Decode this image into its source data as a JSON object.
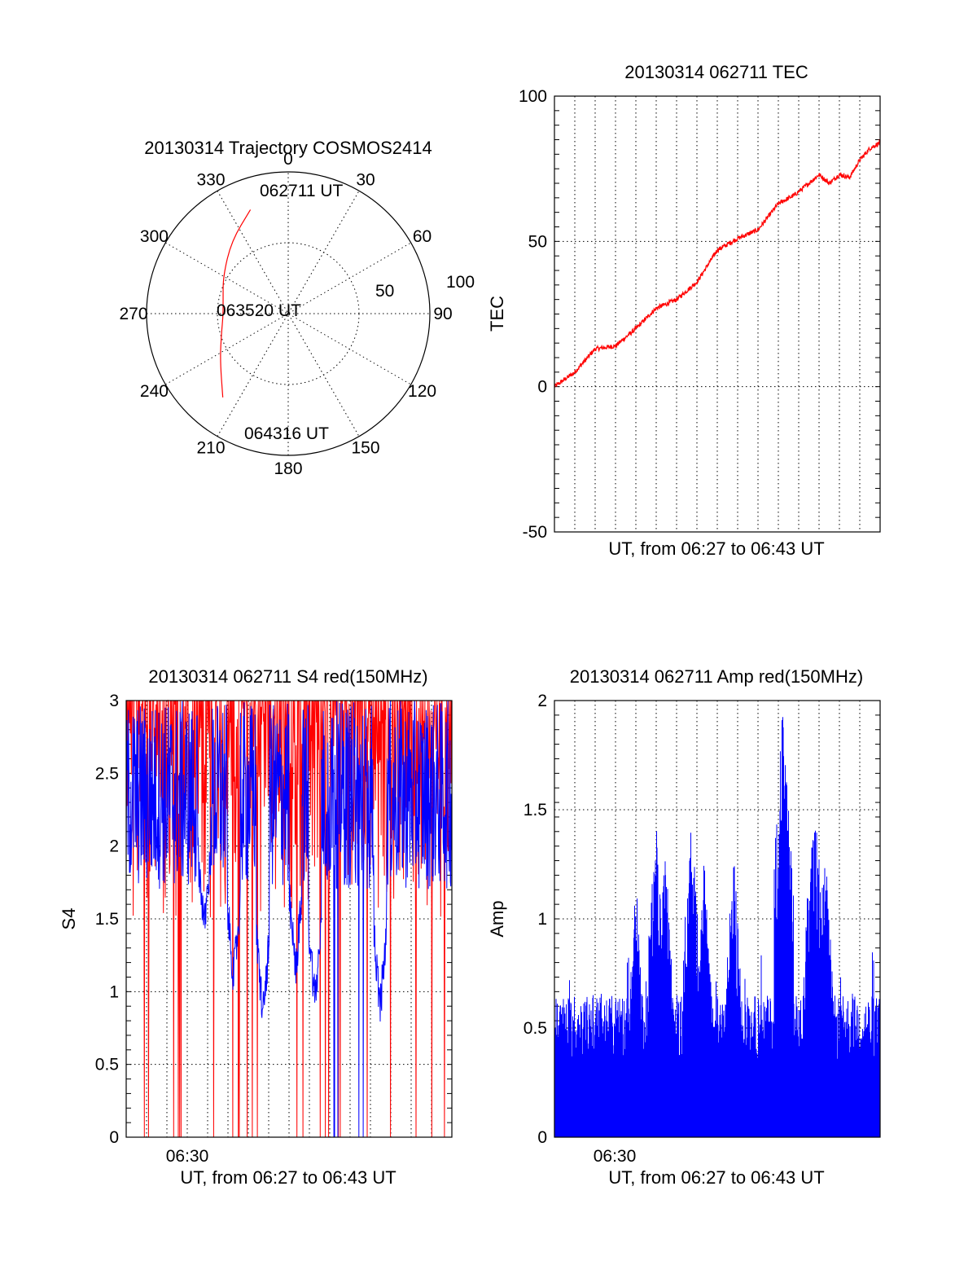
{
  "chart_data": [
    {
      "type": "polar",
      "title": "20130314 Trajectory COSMOS2414",
      "azimuth_labels": [
        "0",
        "30",
        "60",
        "90",
        "120",
        "150",
        "180",
        "210",
        "240",
        "270",
        "300",
        "330"
      ],
      "elevation_labels": [
        "50",
        "100"
      ],
      "elevation_range": [
        0,
        100
      ],
      "series": [
        {
          "name": "trajectory",
          "color": "#ff0000",
          "points": [
            {
              "az": 340,
              "r": 78
            },
            {
              "az": 322,
              "r": 65
            },
            {
              "az": 300,
              "r": 53
            },
            {
              "az": 282,
              "r": 47
            },
            {
              "az": 268,
              "r": 46
            },
            {
              "az": 254,
              "r": 49
            },
            {
              "az": 236,
              "r": 58
            },
            {
              "az": 218,
              "r": 75
            }
          ]
        }
      ],
      "annotations": [
        {
          "text": "062711 UT",
          "az": 352,
          "r": 83
        },
        {
          "text": "063520 UT",
          "az": 272,
          "r": 26
        },
        {
          "text": "064316 UT",
          "az": 196,
          "r": 84
        }
      ]
    },
    {
      "type": "line",
      "title": "20130314 062711 TEC",
      "xlabel": "UT, from 06:27 to 06:43 UT",
      "ylabel": "TEC",
      "xlim": [
        0,
        16
      ],
      "ylim": [
        -50,
        100
      ],
      "yticks": [
        "-50",
        "0",
        "50",
        "100"
      ],
      "series": [
        {
          "name": "TEC",
          "color": "#ff0000",
          "x": [
            0,
            1,
            2,
            3,
            4,
            5,
            6,
            7,
            8,
            9,
            10,
            11,
            11.8,
            12.5,
            13,
            13.5,
            14,
            14.5,
            15,
            15.5,
            16
          ],
          "y": [
            0,
            5,
            13,
            14,
            20,
            27,
            30,
            36,
            47,
            51,
            54,
            63,
            66,
            70,
            73,
            70,
            73,
            72,
            78,
            82,
            84
          ]
        }
      ]
    },
    {
      "type": "line",
      "title": "20130314 062711 S4 red(150MHz)",
      "xlabel": "UT, from 06:27 to 06:43 UT",
      "ylabel": "S4",
      "xlim": [
        0,
        16
      ],
      "ylim": [
        0,
        3
      ],
      "yticks": [
        "0",
        "0.5",
        "1",
        "1.5",
        "2",
        "2.5",
        "3"
      ],
      "xticks": [
        {
          "value": 2.5,
          "label": "06:30"
        }
      ],
      "series": [
        {
          "name": "S4 red",
          "color": "#ff0000",
          "values": "spiky 0-3 (dense)"
        },
        {
          "name": "S4 blue",
          "color": "#0000ff",
          "values": "mostly 1.5-3, dips to ~0.7"
        }
      ]
    },
    {
      "type": "bar",
      "title": "20130314 062711 Amp red(150MHz)",
      "xlabel": "UT, from 06:27 to 06:43 UT",
      "ylabel": "Amp",
      "xlim": [
        0,
        16
      ],
      "ylim": [
        0,
        2
      ],
      "yticks": [
        "0",
        "0.5",
        "1",
        "1.5",
        "2"
      ],
      "xticks": [
        {
          "value": 2.5,
          "label": "06:30"
        }
      ],
      "series": [
        {
          "name": "Amp",
          "color": "#0000ff",
          "values": "noise floor ~0.4-0.6, peaks up to ~2.0"
        }
      ]
    }
  ]
}
